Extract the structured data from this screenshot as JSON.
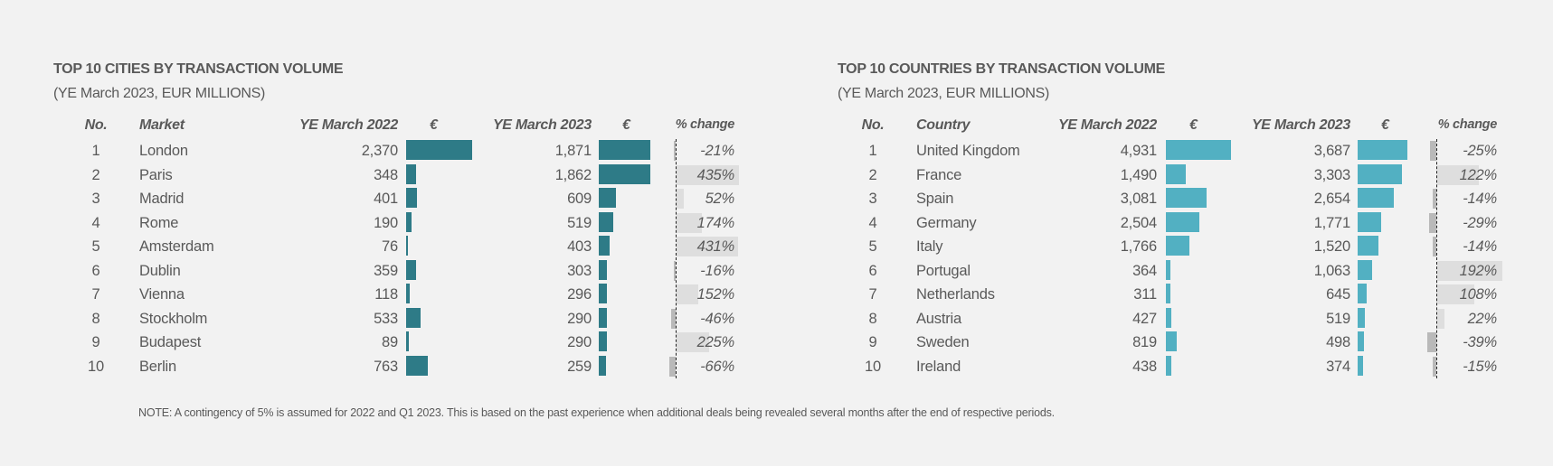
{
  "colors": {
    "background": "#f2f2f2",
    "text": "#595959",
    "cities_bar": "#2e7b87",
    "countries_bar": "#52b0c2",
    "pct_positive": "#dedede",
    "pct_negative": "#b9b9b9"
  },
  "chart_data": [
    {
      "type": "table",
      "title": "TOP 10 CITIES BY TRANSACTION VOLUME",
      "subtitle": "(YE March 2023, EUR MILLIONS)",
      "headers": {
        "no": "No.",
        "name": "Market",
        "y2022": "YE March 2022",
        "bar1": "€",
        "y2023": "YE March 2023",
        "bar2": "€",
        "pct": "% change"
      },
      "rows": [
        {
          "no": "1",
          "name": "London",
          "y2022": "2,370",
          "v2022": 2370,
          "y2023": "1,871",
          "v2023": 1871,
          "pct": "-21%",
          "p": -21
        },
        {
          "no": "2",
          "name": "Paris",
          "y2022": "348",
          "v2022": 348,
          "y2023": "1,862",
          "v2023": 1862,
          "pct": "435%",
          "p": 435
        },
        {
          "no": "3",
          "name": "Madrid",
          "y2022": "401",
          "v2022": 401,
          "y2023": "609",
          "v2023": 609,
          "pct": "52%",
          "p": 52
        },
        {
          "no": "4",
          "name": "Rome",
          "y2022": "190",
          "v2022": 190,
          "y2023": "519",
          "v2023": 519,
          "pct": "174%",
          "p": 174
        },
        {
          "no": "5",
          "name": "Amsterdam",
          "y2022": "76",
          "v2022": 76,
          "y2023": "403",
          "v2023": 403,
          "pct": "431%",
          "p": 431
        },
        {
          "no": "6",
          "name": "Dublin",
          "y2022": "359",
          "v2022": 359,
          "y2023": "303",
          "v2023": 303,
          "pct": "-16%",
          "p": -16
        },
        {
          "no": "7",
          "name": "Vienna",
          "y2022": "118",
          "v2022": 118,
          "y2023": "296",
          "v2023": 296,
          "pct": "152%",
          "p": 152
        },
        {
          "no": "8",
          "name": "Stockholm",
          "y2022": "533",
          "v2022": 533,
          "y2023": "290",
          "v2023": 290,
          "pct": "-46%",
          "p": -46
        },
        {
          "no": "9",
          "name": "Budapest",
          "y2022": "89",
          "v2022": 89,
          "y2023": "290",
          "v2023": 290,
          "pct": "225%",
          "p": 225
        },
        {
          "no": "10",
          "name": "Berlin",
          "y2022": "763",
          "v2022": 763,
          "y2023": "259",
          "v2023": 259,
          "pct": "-66%",
          "p": -66
        }
      ]
    },
    {
      "type": "table",
      "title": "TOP 10 COUNTRIES BY TRANSACTION VOLUME",
      "subtitle": "(YE March 2023, EUR MILLIONS)",
      "headers": {
        "no": "No.",
        "name": "Country",
        "y2022": "YE March 2022",
        "bar1": "€",
        "y2023": "YE March 2023",
        "bar2": "€",
        "pct": "% change"
      },
      "rows": [
        {
          "no": "1",
          "name": "United Kingdom",
          "y2022": "4,931",
          "v2022": 4931,
          "y2023": "3,687",
          "v2023": 3687,
          "pct": "-25%",
          "p": -25
        },
        {
          "no": "2",
          "name": "France",
          "y2022": "1,490",
          "v2022": 1490,
          "y2023": "3,303",
          "v2023": 3303,
          "pct": "122%",
          "p": 122
        },
        {
          "no": "3",
          "name": "Spain",
          "y2022": "3,081",
          "v2022": 3081,
          "y2023": "2,654",
          "v2023": 2654,
          "pct": "-14%",
          "p": -14
        },
        {
          "no": "4",
          "name": "Germany",
          "y2022": "2,504",
          "v2022": 2504,
          "y2023": "1,771",
          "v2023": 1771,
          "pct": "-29%",
          "p": -29
        },
        {
          "no": "5",
          "name": "Italy",
          "y2022": "1,766",
          "v2022": 1766,
          "y2023": "1,520",
          "v2023": 1520,
          "pct": "-14%",
          "p": -14
        },
        {
          "no": "6",
          "name": "Portugal",
          "y2022": "364",
          "v2022": 364,
          "y2023": "1,063",
          "v2023": 1063,
          "pct": "192%",
          "p": 192
        },
        {
          "no": "7",
          "name": "Netherlands",
          "y2022": "311",
          "v2022": 311,
          "y2023": "645",
          "v2023": 645,
          "pct": "108%",
          "p": 108
        },
        {
          "no": "8",
          "name": "Austria",
          "y2022": "427",
          "v2022": 427,
          "y2023": "519",
          "v2023": 519,
          "pct": "22%",
          "p": 22
        },
        {
          "no": "9",
          "name": "Sweden",
          "y2022": "819",
          "v2022": 819,
          "y2023": "498",
          "v2023": 498,
          "pct": "-39%",
          "p": -39
        },
        {
          "no": "10",
          "name": "Ireland",
          "y2022": "438",
          "v2022": 438,
          "y2023": "374",
          "v2023": 374,
          "pct": "-15%",
          "p": -15
        }
      ]
    }
  ],
  "note": "NOTE: A contingency of 5% is assumed for 2022 and Q1 2023. This is based on the past experience when additional deals being revealed several months after the end of respective periods."
}
